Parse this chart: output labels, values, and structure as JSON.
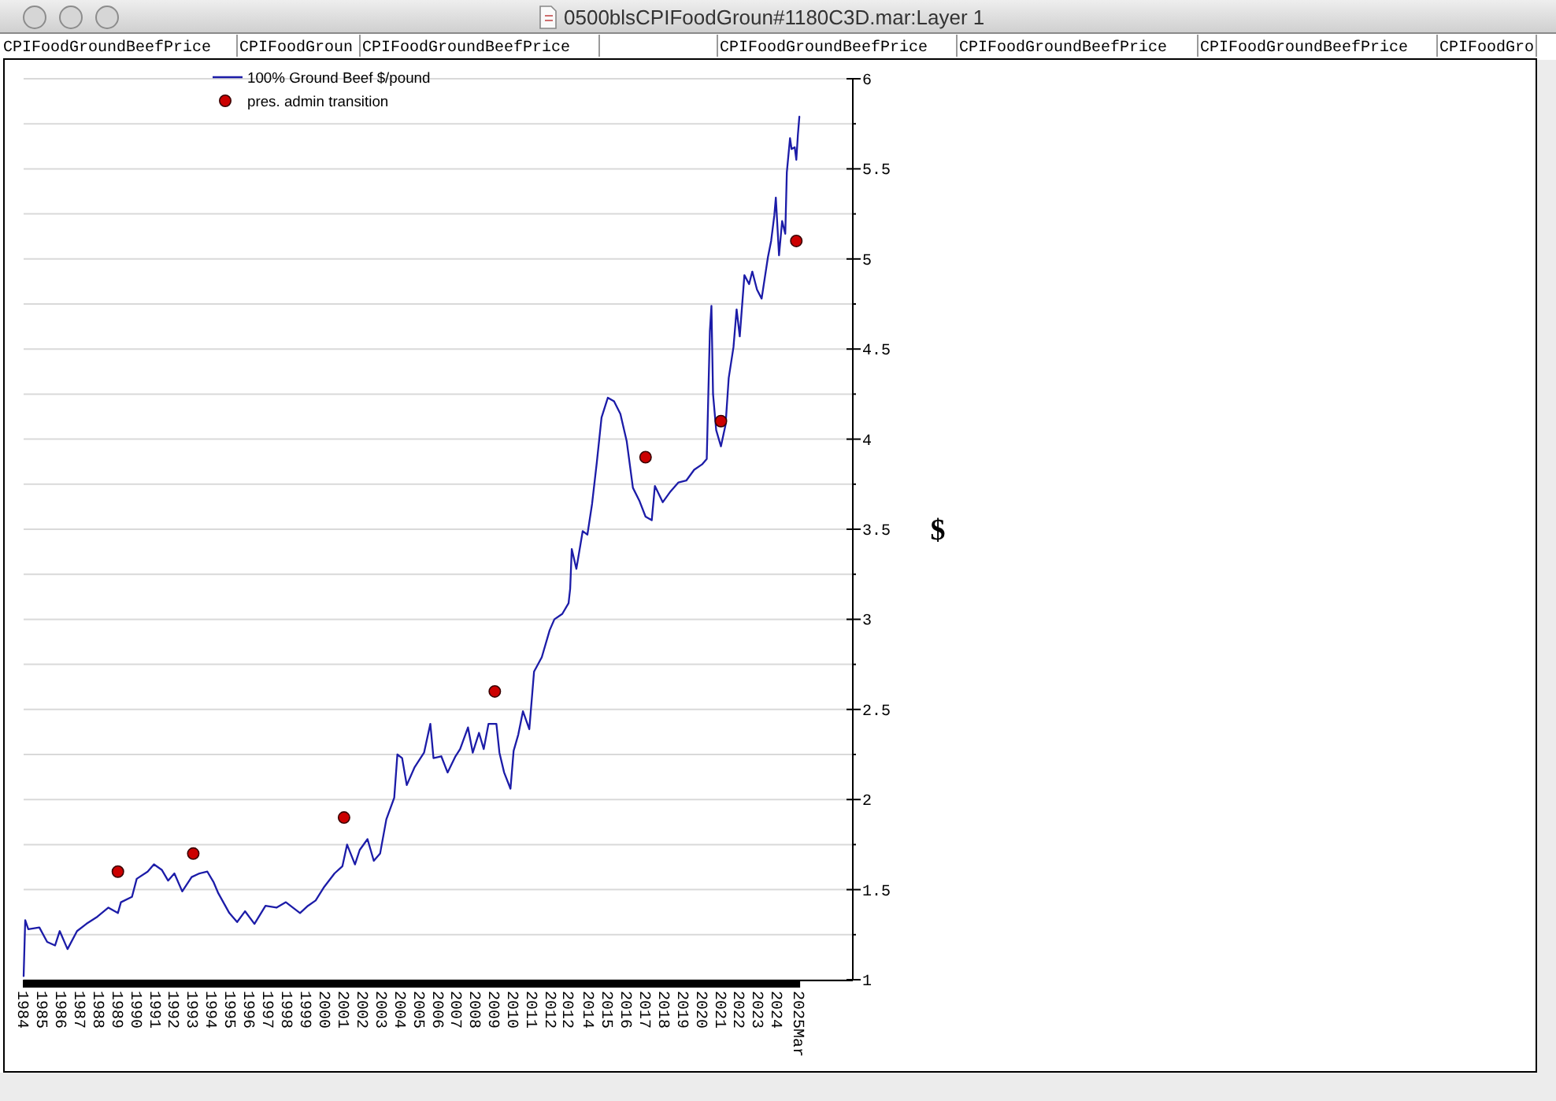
{
  "chart_data": {
    "type": "line",
    "title": "0500blsCPIFoodGroun#1180C3D.mar:Layer 1",
    "ylabel": "$",
    "annotations": [
      "CPIFoodGroundBeefPrice",
      "CPIFoodGroun",
      "CPIFoodGroundBeefPrice",
      "CPIFoodGroundBeefPrice",
      "CPIFoodGroundBeefPrice",
      "CPIFoodGroundBeefPrice",
      "CPIFoodGro"
    ],
    "xlim": [
      "1984-01",
      "2028-01"
    ],
    "xticks": [
      "1984",
      "1985",
      "1986",
      "1987",
      "1988",
      "1989",
      "1990",
      "1991",
      "1992",
      "1993",
      "1994",
      "1995",
      "1996",
      "1997",
      "1998",
      "1999",
      "2000",
      "2001",
      "2002",
      "2003",
      "2004",
      "2005",
      "2006",
      "2007",
      "2008",
      "2009",
      "2010",
      "2011",
      "2012",
      {
        "value": "2012-12",
        "label": "2012"
      },
      "2014",
      "2015",
      "2016",
      "2017",
      "2018",
      "2019",
      "2020",
      "2021",
      "2022",
      "2023",
      "2024",
      {
        "value": "2025-03",
        "label": "2025Mar"
      }
    ],
    "ylim": [
      1,
      6
    ],
    "yticks": [
      1,
      {
        "value": 1.25,
        "label": null
      },
      1.5,
      {
        "value": 1.75,
        "label": null
      },
      2,
      {
        "value": 2.25,
        "label": null
      },
      2.5,
      {
        "value": 2.75,
        "label": null
      },
      3,
      {
        "value": 3.25,
        "label": null
      },
      3.5,
      {
        "value": 3.75,
        "label": null
      },
      4,
      {
        "value": 4.25,
        "label": null
      },
      4.5,
      {
        "value": 4.75,
        "label": null
      },
      5,
      {
        "value": 5.25,
        "label": null
      },
      5.5,
      {
        "value": 5.75,
        "label": null
      },
      6
    ],
    "grid": "y",
    "legend": "top left",
    "series": [
      {
        "name": "100% Ground Beef $/pound",
        "color": "#1c1ca8",
        "x": [
          "1984-01",
          "1984-02",
          "1984-04",
          "1984-11",
          "1985-04",
          "1985-09",
          "1985-12",
          "1986-05",
          "1986-11",
          "1987-05",
          "1987-12",
          "1988-07",
          "1989-01",
          "1989-03",
          "1989-10",
          "1990-01",
          "1990-08",
          "1990-12",
          "1991-05",
          "1991-09",
          "1992-01",
          "1992-06",
          "1992-12",
          "1993-05",
          "1993-10",
          "1994-02",
          "1994-05",
          "1994-12",
          "1995-05",
          "1995-10",
          "1996-04",
          "1996-11",
          "1997-06",
          "1997-12",
          "1998-09",
          "1999-02",
          "1999-07",
          "1999-12",
          "2000-07",
          "2000-12",
          "2001-03",
          "2001-08",
          "2001-11",
          "2002-04",
          "2002-08",
          "2002-12",
          "2003-04",
          "2003-09",
          "2003-11",
          "2004-02",
          "2004-05",
          "2004-10",
          "2005-04",
          "2005-08",
          "2005-10",
          "2006-03",
          "2006-07",
          "2006-12",
          "2007-03",
          "2007-08",
          "2007-11",
          "2008-03",
          "2008-06",
          "2008-09",
          "2009-02",
          "2009-04",
          "2009-07",
          "2009-11",
          "2010-01",
          "2010-04",
          "2010-07",
          "2010-11",
          "2011-02",
          "2011-07",
          "2011-12",
          "2012-03",
          "2012-08",
          "2012-12",
          "2013-01",
          "2013-02",
          "2013-05",
          "2013-09",
          "2013-12",
          "2014-03",
          "2014-06",
          "2014-09",
          "2015-01",
          "2015-05",
          "2015-09",
          "2016-01",
          "2016-05",
          "2016-09",
          "2017-01",
          "2017-05",
          "2017-07",
          "2017-12",
          "2018-05",
          "2018-10",
          "2019-03",
          "2019-08",
          "2020-01",
          "2020-04",
          "2020-06",
          "2020-07",
          "2020-08",
          "2020-10",
          "2021-01",
          "2021-04",
          "2021-06",
          "2021-09",
          "2021-11",
          "2022-01",
          "2022-04",
          "2022-07",
          "2022-09",
          "2022-12",
          "2023-03",
          "2023-07",
          "2023-09",
          "2023-11",
          "2023-12",
          "2024-02",
          "2024-04",
          "2024-06",
          "2024-07",
          "2024-09",
          "2024-10",
          "2024-12",
          "2025-01",
          "2025-02",
          "2025-03"
        ],
        "values": [
          1.02,
          1.33,
          1.28,
          1.29,
          1.21,
          1.19,
          1.27,
          1.17,
          1.27,
          1.31,
          1.35,
          1.4,
          1.37,
          1.43,
          1.46,
          1.56,
          1.6,
          1.64,
          1.61,
          1.55,
          1.59,
          1.49,
          1.57,
          1.59,
          1.6,
          1.54,
          1.48,
          1.37,
          1.32,
          1.38,
          1.31,
          1.41,
          1.4,
          1.43,
          1.37,
          1.41,
          1.44,
          1.51,
          1.59,
          1.63,
          1.75,
          1.64,
          1.72,
          1.78,
          1.66,
          1.7,
          1.89,
          2.01,
          2.25,
          2.23,
          2.08,
          2.18,
          2.26,
          2.42,
          2.23,
          2.24,
          2.15,
          2.24,
          2.28,
          2.4,
          2.26,
          2.37,
          2.28,
          2.42,
          2.42,
          2.26,
          2.15,
          2.06,
          2.27,
          2.36,
          2.49,
          2.39,
          2.71,
          2.79,
          2.94,
          3.0,
          3.03,
          3.09,
          3.17,
          3.39,
          3.28,
          3.49,
          3.47,
          3.64,
          3.87,
          4.12,
          4.23,
          4.21,
          4.14,
          3.99,
          3.73,
          3.66,
          3.57,
          3.55,
          3.74,
          3.65,
          3.71,
          3.76,
          3.77,
          3.83,
          3.86,
          3.89,
          4.6,
          4.74,
          4.25,
          4.05,
          3.96,
          4.08,
          4.34,
          4.51,
          4.72,
          4.57,
          4.91,
          4.86,
          4.93,
          4.83,
          4.78,
          5.01,
          5.1,
          5.24,
          5.34,
          5.02,
          5.21,
          5.14,
          5.48,
          5.67,
          5.61,
          5.62,
          5.55,
          5.69,
          5.79
        ]
      },
      {
        "name": "pres. admin transition",
        "type": "scatter",
        "marker": "circle",
        "color": "#cc0000",
        "x": [
          "1989-01",
          "1993-01",
          "2001-01",
          "2009-01",
          "2017-01",
          "2021-01",
          "2025-01"
        ],
        "values": [
          1.6,
          1.7,
          1.9,
          2.6,
          3.9,
          4.1,
          5.1
        ]
      }
    ]
  }
}
